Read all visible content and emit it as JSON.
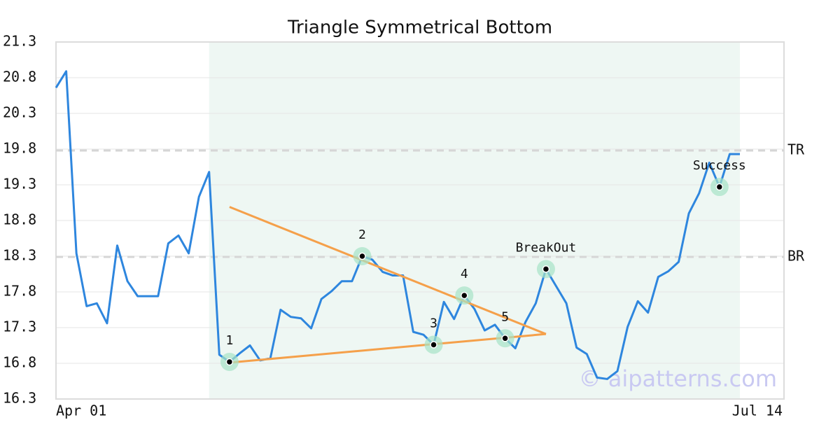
{
  "chart_data": {
    "type": "line",
    "title": "Triangle Symmetrical Bottom",
    "categories": [
      "Apr 01",
      null,
      null,
      null,
      null,
      null,
      null,
      null,
      null,
      null,
      null,
      null,
      null,
      null,
      null,
      null,
      null,
      null,
      null,
      null,
      null,
      null,
      null,
      null,
      null,
      null,
      null,
      null,
      null,
      null,
      null,
      null,
      null,
      null,
      null,
      null,
      null,
      null,
      null,
      null,
      null,
      null,
      null,
      null,
      null,
      null,
      null,
      null,
      null,
      null,
      null,
      null,
      null,
      null,
      null,
      null,
      null,
      null,
      null,
      null,
      null,
      null,
      null,
      null,
      null,
      null,
      null,
      "Jul 14"
    ],
    "values": [
      20.66,
      20.89,
      18.34,
      17.6,
      17.64,
      17.36,
      18.45,
      17.95,
      17.74,
      17.74,
      17.74,
      18.48,
      18.59,
      18.34,
      19.13,
      19.48,
      16.92,
      16.82,
      16.94,
      17.05,
      16.84,
      16.87,
      17.55,
      17.45,
      17.43,
      17.29,
      17.7,
      17.81,
      17.95,
      17.95,
      18.3,
      18.25,
      18.08,
      18.03,
      18.03,
      17.24,
      17.2,
      17.06,
      17.66,
      17.42,
      17.75,
      17.56,
      17.26,
      17.34,
      17.15,
      17.01,
      17.38,
      17.64,
      18.12,
      17.88,
      17.64,
      17.02,
      16.93,
      16.6,
      16.58,
      16.69,
      17.31,
      17.67,
      17.51,
      18.01,
      18.09,
      18.22,
      18.9,
      19.18,
      19.61,
      19.27,
      19.73,
      19.73
    ],
    "color": "#2e86de",
    "ylim": [
      16.3,
      21.3
    ],
    "yticks": [
      16.3,
      16.8,
      17.3,
      17.8,
      18.3,
      18.8,
      19.3,
      19.8,
      20.3,
      20.8,
      21.3
    ],
    "grid": true,
    "shade": {
      "start": 15,
      "end": 67,
      "color": "#eef7f3"
    },
    "reference_lines": [
      {
        "label": "TR",
        "value": 19.78
      },
      {
        "label": "BR",
        "value": 18.29
      }
    ],
    "trendlines": {
      "color": "#f5a04a",
      "lines": [
        {
          "x": [
            17,
            48
          ],
          "values": [
            18.99,
            17.21
          ]
        },
        {
          "x": [
            17,
            48
          ],
          "values": [
            16.81,
            17.21
          ]
        }
      ]
    },
    "annotations": [
      {
        "label": "1",
        "index": 17
      },
      {
        "label": "2",
        "index": 30
      },
      {
        "label": "3",
        "index": 37
      },
      {
        "label": "4",
        "index": 40
      },
      {
        "label": "5",
        "index": 44
      },
      {
        "label": "BreakOut",
        "index": 48
      },
      {
        "label": "Success",
        "index": 65
      }
    ],
    "watermark": "© aipatterns.com"
  }
}
